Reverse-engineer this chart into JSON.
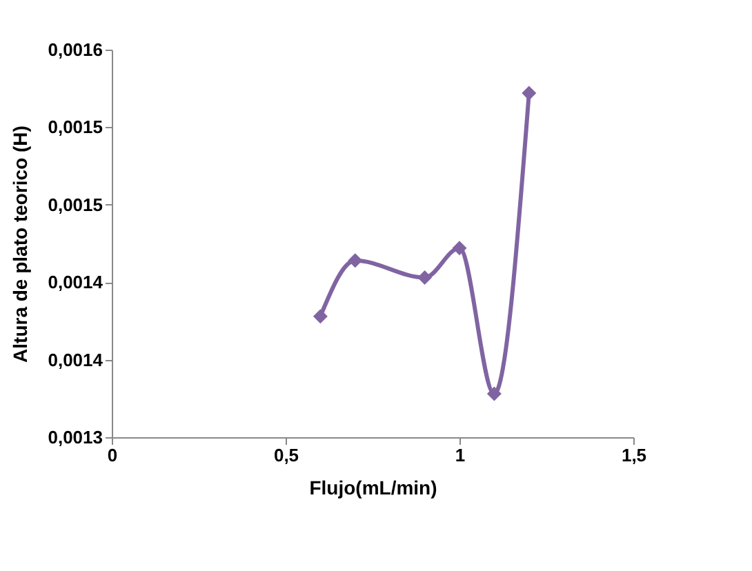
{
  "chart_data": {
    "type": "line",
    "xlabel": "Flujo(mL/min)",
    "ylabel": "Altura de plato teorico (H)",
    "x": [
      0.6,
      0.7,
      0.9,
      1.0,
      1.1,
      1.2
    ],
    "series": [
      {
        "color": "#8064a2",
        "values": [
          0.001378,
          0.001414,
          0.001403,
          0.001422,
          0.001328,
          0.001522
        ]
      }
    ],
    "xlim": [
      0,
      1.5
    ],
    "xticks": [
      {
        "value": 0,
        "label": "0"
      },
      {
        "value": 0.5,
        "label": "0,5"
      },
      {
        "value": 1,
        "label": "1"
      },
      {
        "value": 1.5,
        "label": "1,5"
      }
    ],
    "ylim": [
      0.0013,
      0.00155
    ],
    "yticks": [
      {
        "value": 0.0013,
        "label": "0,0013"
      },
      {
        "value": 0.00135,
        "label": "0,0014"
      },
      {
        "value": 0.0014,
        "label": "0,0014"
      },
      {
        "value": 0.00145,
        "label": "0,0015"
      },
      {
        "value": 0.0015,
        "label": "0,0015"
      },
      {
        "value": 0.00155,
        "label": "0,0016"
      }
    ],
    "marker": "diamond",
    "grid": false,
    "legend": false
  }
}
